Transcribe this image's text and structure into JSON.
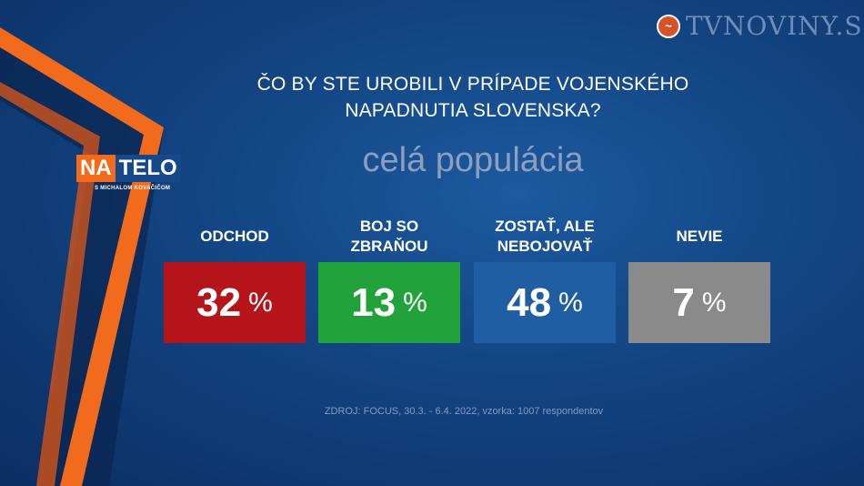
{
  "brand": {
    "site": "TVNOVINY.SK",
    "show_part1": "NA",
    "show_part2": "TELO",
    "show_subtitle": "S MICHALOM KOVAČIČOM"
  },
  "chart_data": {
    "type": "table",
    "title": "ČO BY STE UROBILI V PRÍPADE VOJENSKÉHO NAPADNUTIA SLOVENSKA?",
    "title_line1": "ČO BY STE UROBILI V PRÍPADE VOJENSKÉHO",
    "title_line2": "NAPADNUTIA SLOVENSKA?",
    "subtitle": "celá populácia",
    "unit": "%",
    "categories": [
      [
        "ODCHOD"
      ],
      [
        "BOJ SO",
        "ZBRAŇOU"
      ],
      [
        "ZOSTAŤ, ALE",
        "NEBOJOVAŤ"
      ],
      [
        "NEVIE"
      ]
    ],
    "values": [
      32,
      13,
      48,
      7
    ],
    "colors": [
      "#b5151a",
      "#22a23a",
      "#1f5ea3",
      "#8a8a8a"
    ],
    "source": "ZDROJ: FOCUS, 30.3. - 6.4. 2022, vzorka: 1007 respondentov"
  }
}
